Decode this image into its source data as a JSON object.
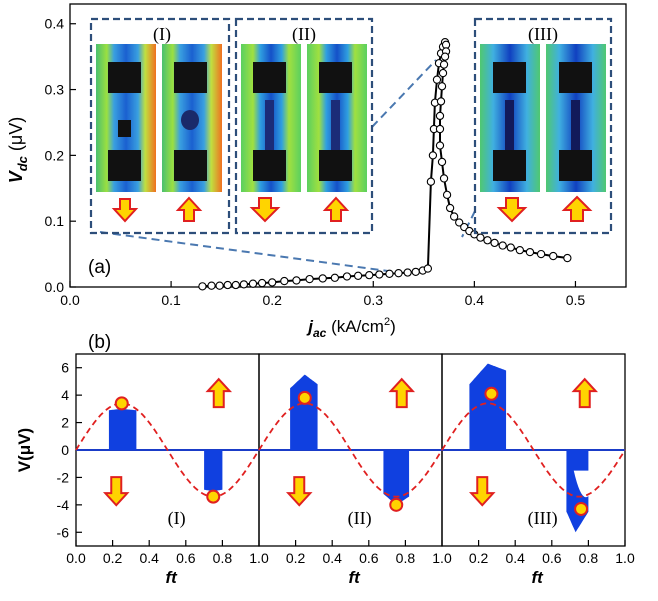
{
  "chart_data": [
    {
      "panel": "(a)",
      "type": "line",
      "xlabel_main": "j",
      "xlabel_sub": "ac",
      "xlabel_units": " (kA/cm",
      "xlabel_sup": "2",
      "xlabel_close": ")",
      "ylabel_main": "V",
      "ylabel_sub": "dc",
      "ylabel_units": " (μV)",
      "xlim": [
        0.0,
        0.55
      ],
      "ylim": [
        0.0,
        0.43
      ],
      "xticks": [
        "0.0",
        "0.1",
        "0.2",
        "0.3",
        "0.4",
        "0.5"
      ],
      "yticks": [
        "0.0",
        "0.1",
        "0.2",
        "0.3",
        "0.4"
      ],
      "series": [
        {
          "name": "Vdc",
          "x": [
            0.131,
            0.14,
            0.148,
            0.156,
            0.164,
            0.172,
            0.181,
            0.19,
            0.2,
            0.212,
            0.224,
            0.237,
            0.25,
            0.262,
            0.274,
            0.285,
            0.296,
            0.306,
            0.316,
            0.325,
            0.334,
            0.342,
            0.349,
            0.354,
            0.357,
            0.359,
            0.36,
            0.361,
            0.363,
            0.365,
            0.367,
            0.369,
            0.371,
            0.372,
            0.372,
            0.371,
            0.37,
            0.369,
            0.368,
            0.367,
            0.366,
            0.366,
            0.366,
            0.368,
            0.37,
            0.373,
            0.376,
            0.38,
            0.385,
            0.39,
            0.395,
            0.4,
            0.406,
            0.413,
            0.42,
            0.428,
            0.436,
            0.445,
            0.455,
            0.466,
            0.478,
            0.492
          ],
          "y": [
            0.001,
            0.002,
            0.002,
            0.003,
            0.003,
            0.004,
            0.005,
            0.006,
            0.007,
            0.009,
            0.01,
            0.012,
            0.013,
            0.014,
            0.016,
            0.017,
            0.018,
            0.019,
            0.02,
            0.021,
            0.022,
            0.023,
            0.025,
            0.028,
            0.16,
            0.2,
            0.24,
            0.28,
            0.315,
            0.34,
            0.355,
            0.365,
            0.372,
            0.368,
            0.358,
            0.35,
            0.338,
            0.325,
            0.305,
            0.282,
            0.26,
            0.24,
            0.215,
            0.19,
            0.165,
            0.14,
            0.12,
            0.107,
            0.098,
            0.091,
            0.085,
            0.08,
            0.075,
            0.071,
            0.067,
            0.063,
            0.06,
            0.056,
            0.053,
            0.05,
            0.047,
            0.044
          ]
        }
      ],
      "insets": [
        {
          "label": "(I)",
          "arrows": [
            "down",
            "up"
          ]
        },
        {
          "label": "(II)",
          "arrows": [
            "down",
            "up"
          ]
        },
        {
          "label": "(III)",
          "arrows": [
            "down",
            "up"
          ]
        }
      ]
    },
    {
      "panel": "(b)",
      "type": "line",
      "ylabel": "V(μV)",
      "xlabel": "ft",
      "ylim": [
        -7,
        7
      ],
      "yticks": [
        "6",
        "4",
        "2",
        "0",
        "-2",
        "-4",
        "-6"
      ],
      "subpanels": [
        {
          "label": "(I)",
          "xticks": [
            "0.0",
            "0.2",
            "0.4",
            "0.6",
            "0.8",
            "1.0"
          ],
          "envelope_top": [
            [
              0.18,
              2.9
            ],
            [
              0.25,
              3.0
            ],
            [
              0.33,
              2.9
            ]
          ],
          "envelope_bottom": [
            [
              0.7,
              -2.9
            ],
            [
              0.75,
              -3.0
            ],
            [
              0.8,
              -2.9
            ]
          ],
          "markers": [
            [
              0.25,
              3.4
            ],
            [
              0.75,
              -3.4
            ]
          ]
        },
        {
          "label": "(II)",
          "xticks": [
            "0.2",
            "0.4",
            "0.6",
            "0.8",
            "1.0"
          ],
          "envelope_top": [
            [
              0.17,
              4.5
            ],
            [
              0.25,
              5.5
            ],
            [
              0.32,
              4.8
            ]
          ],
          "envelope_bottom": [
            [
              0.68,
              -3.2
            ],
            [
              0.75,
              -4.0
            ],
            [
              0.82,
              -3.4
            ]
          ],
          "markers": [
            [
              0.25,
              3.8
            ],
            [
              0.75,
              -4.0
            ]
          ]
        },
        {
          "label": "(III)",
          "xticks": [
            "0.2",
            "0.4",
            "0.6",
            "0.8",
            "1.0"
          ],
          "envelope_top": [
            [
              0.15,
              4.8
            ],
            [
              0.25,
              6.3
            ],
            [
              0.35,
              5.8
            ]
          ],
          "envelope_bottom": [
            [
              0.68,
              -4.5
            ],
            [
              0.73,
              -6.0
            ],
            [
              0.8,
              -4.5
            ]
          ],
          "markers": [
            [
              0.27,
              4.1
            ],
            [
              0.76,
              -4.3
            ]
          ]
        }
      ],
      "sine_amplitude": 3.4,
      "arrows": [
        "up",
        "down"
      ]
    }
  ]
}
